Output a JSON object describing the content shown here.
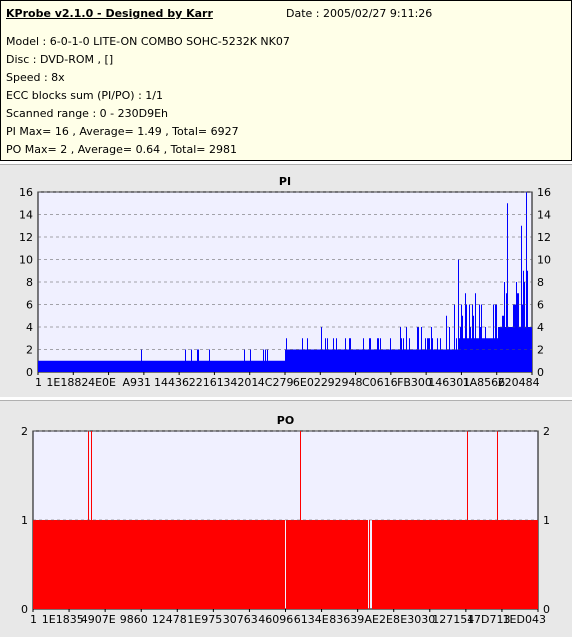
{
  "header": {
    "title": "KProbe v2.1.0 - Designed by Karr",
    "date": "Date : 2005/02/27 9:11:26",
    "lines": [
      "Model : 6-0-1-0 LITE-ON COMBO SOHC-5232K NK07",
      "Disc : DVD-ROM ,  []",
      "Speed : 8x",
      "ECC blocks sum (PI/PO) : 1/1",
      "Scanned range : 0 - 230D9Eh",
      "PI Max= 16 , Average= 1.49 , Total= 6927",
      "PO Max= 2 , Average= 0.64 , Total= 2981"
    ]
  },
  "colors": {
    "pi": "#0000ff",
    "po": "#ff0000",
    "plot_bg": "#f0f0ff",
    "panel_bg": "#e8e8e8"
  },
  "chart_data": [
    {
      "type": "bar",
      "title": "PI",
      "ylim": [
        0,
        16
      ],
      "yticks": [
        0,
        2,
        4,
        6,
        8,
        10,
        12,
        14,
        16
      ],
      "xticks": [
        "1E1882",
        "4E0E",
        "A931",
        "14436",
        "22161",
        "34201",
        "4C279",
        "6E022",
        "92948",
        "C0616",
        "FB300",
        "146301",
        "1A8566",
        "220484"
      ],
      "x_first": "1",
      "grid": true,
      "summary": {
        "max": 16,
        "average": 1.49,
        "total": 6927
      },
      "profile": {
        "segments": [
          {
            "from": 0.0,
            "to": 0.5,
            "base": 1,
            "peak": 2
          },
          {
            "from": 0.5,
            "to": 0.72,
            "base": 2,
            "peak": 4
          },
          {
            "from": 0.72,
            "to": 0.85,
            "base": 2,
            "peak": 6
          },
          {
            "from": 0.85,
            "to": 0.93,
            "base": 3,
            "peak": 10
          },
          {
            "from": 0.93,
            "to": 1.0,
            "base": 4,
            "peak": 16
          }
        ]
      }
    },
    {
      "type": "bar",
      "title": "PO",
      "ylim": [
        0,
        2
      ],
      "yticks": [
        0,
        1,
        2
      ],
      "xticks": [
        "1E1835",
        "4907E",
        "9860",
        "12478",
        "1E975",
        "30763",
        "46096",
        "6134E",
        "83639",
        "AE2E8",
        "E3030",
        "127154",
        "17D713",
        "1ED043"
      ],
      "x_first": "1",
      "grid": true,
      "summary": {
        "max": 2,
        "average": 0.64,
        "total": 2981
      },
      "profile": {
        "base": 1,
        "spikes": [
          0.11,
          0.115,
          0.53,
          0.86,
          0.92
        ],
        "gaps": [
          0.5,
          0.665,
          0.668,
          0.671
        ]
      }
    }
  ]
}
